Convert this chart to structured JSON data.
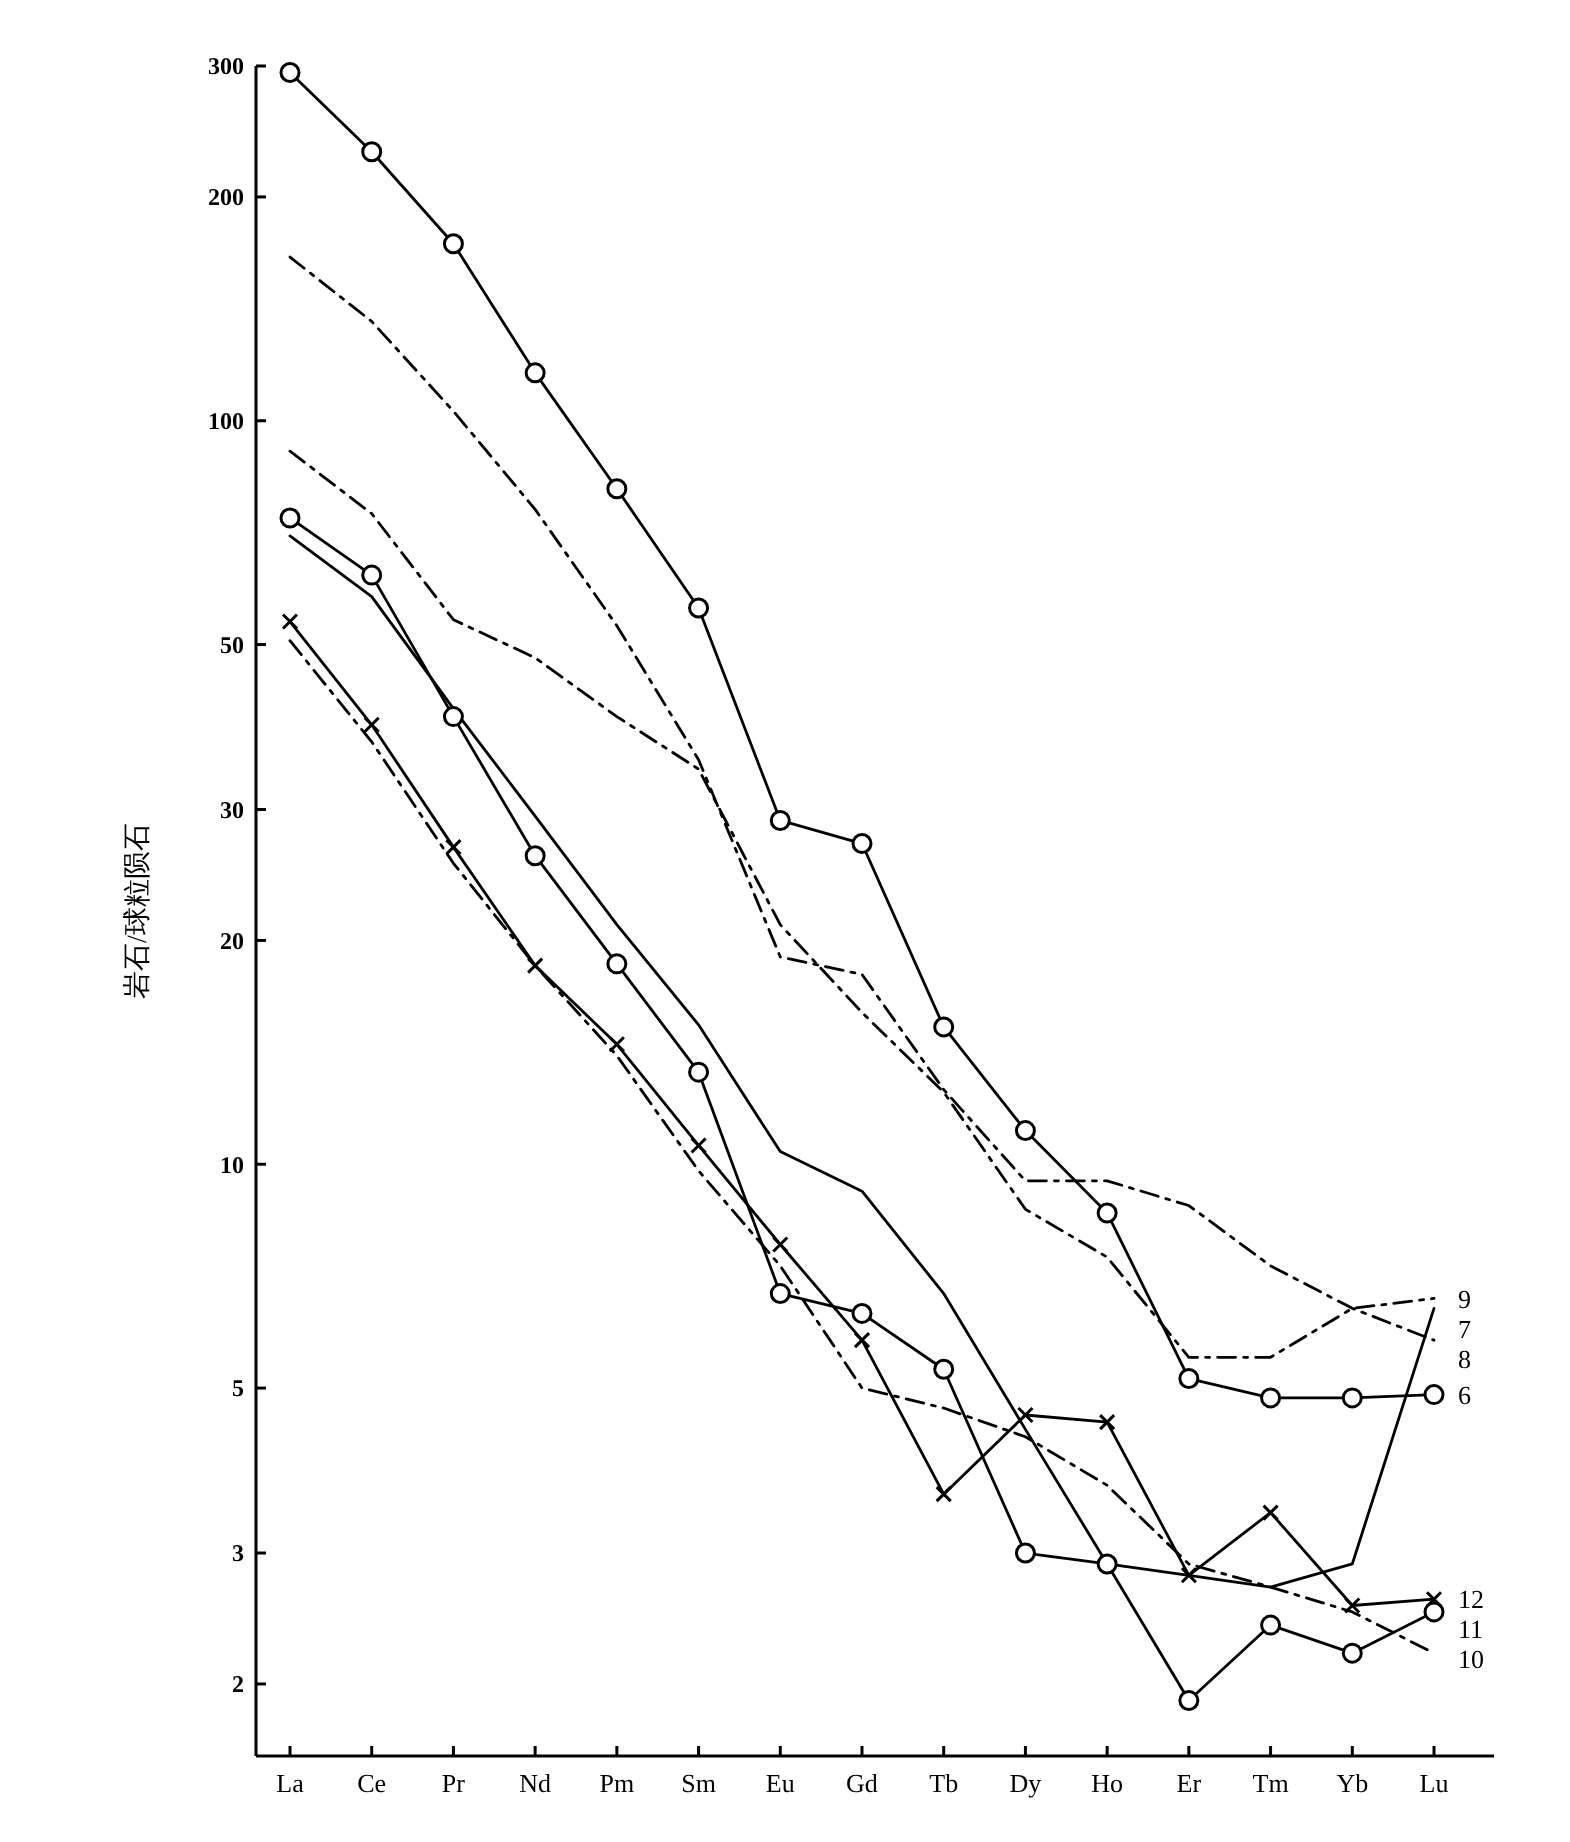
{
  "chart_data": {
    "type": "line",
    "ylabel": "岩石/球粒陨石",
    "log": true,
    "categories": [
      "La",
      "Ce",
      "Pr",
      "Nd",
      "Pm",
      "Sm",
      "Eu",
      "Gd",
      "Tb",
      "Dy",
      "Ho",
      "Er",
      "Tm",
      "Yb",
      "Lu"
    ],
    "ylim": [
      1.6,
      300
    ],
    "yticks": [
      2,
      3,
      5,
      10,
      20,
      30,
      50,
      100,
      200,
      300
    ],
    "grid": false,
    "series": [
      {
        "name": "6",
        "color": "#000000",
        "marker": "circle",
        "line_style": "solid",
        "values": [
          294,
          230,
          173,
          116,
          81,
          56,
          29,
          27,
          15.3,
          11.1,
          8.6,
          5.15,
          4.85,
          4.85,
          4.9
        ]
      },
      {
        "name": "7",
        "color": "#000000",
        "marker": "none",
        "line_style": "solid",
        "values": [
          70,
          58,
          41,
          29.4,
          21,
          15.4,
          10.4,
          9.2,
          6.7,
          4.4,
          2.9,
          2.8,
          2.7,
          2.9,
          6.4
        ]
      },
      {
        "name": "8",
        "color": "#000000",
        "marker": "none",
        "line_style": "dashed",
        "values": [
          166,
          136,
          103,
          76,
          53,
          35,
          19,
          18,
          12.6,
          9.5,
          9.5,
          8.8,
          7.3,
          6.4,
          5.8
        ]
      },
      {
        "name": "9",
        "color": "#000000",
        "marker": "none",
        "line_style": "dashed",
        "values": [
          91,
          75,
          54,
          48,
          40,
          34,
          21,
          16,
          12.5,
          8.7,
          7.5,
          5.5,
          5.5,
          6.4,
          6.6
        ]
      },
      {
        "name": "10",
        "color": "#000000",
        "marker": "none",
        "line_style": "dashed",
        "values": [
          50.6,
          37,
          25.4,
          18.5,
          14,
          9.8,
          7.3,
          5,
          4.7,
          4.3,
          3.7,
          2.9,
          2.7,
          2.5,
          2.2
        ]
      },
      {
        "name": "11",
        "color": "#000000",
        "marker": "circle",
        "line_style": "solid",
        "values": [
          74,
          62,
          40,
          26,
          18.6,
          13.3,
          6.7,
          6.3,
          5.3,
          3,
          2.9,
          1.9,
          2.4,
          2.2,
          2.5
        ]
      },
      {
        "name": "12",
        "color": "#000000",
        "marker": "cross",
        "line_style": "solid",
        "values": [
          53.7,
          39,
          26.7,
          18.5,
          14.5,
          10.6,
          7.8,
          5.8,
          3.6,
          4.6,
          4.5,
          2.8,
          3.4,
          2.55,
          2.6
        ]
      }
    ]
  }
}
